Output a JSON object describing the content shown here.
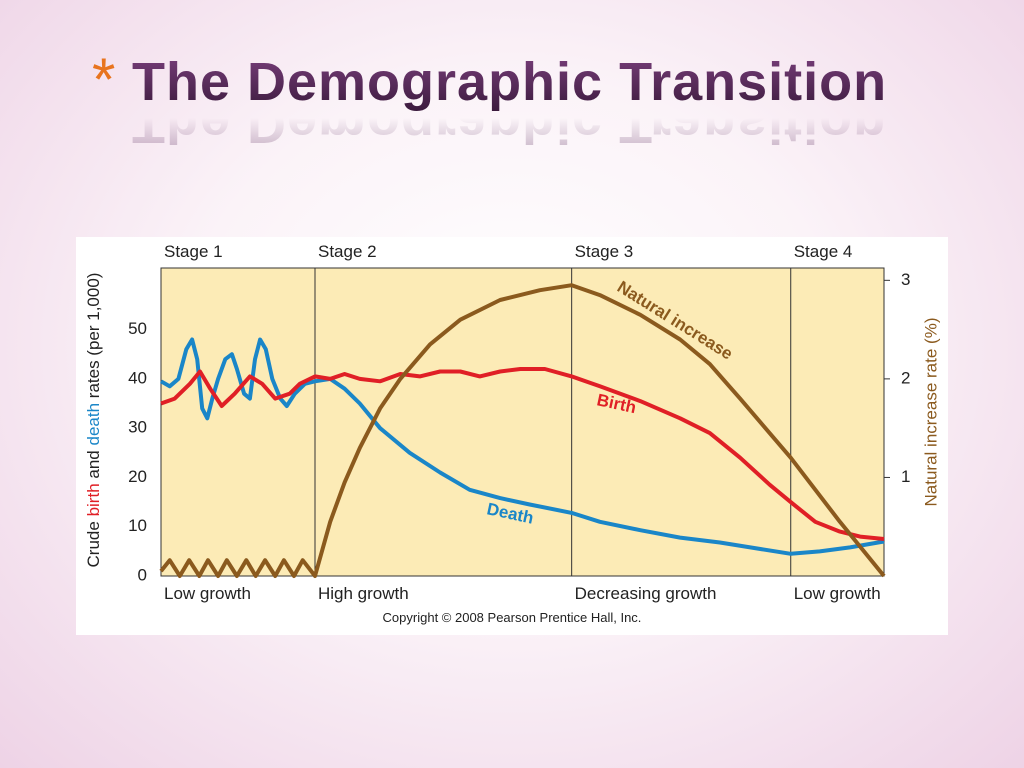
{
  "slide": {
    "bullet": "*",
    "title": "The Demographic Transition"
  },
  "chart_data": {
    "type": "line",
    "ylabel_parts": [
      "Crude",
      "birth",
      "and",
      "death",
      "rates (per 1,000)"
    ],
    "y2label": "Natural increase rate (%)",
    "copyright": "Copyright © 2008 Pearson Prentice Hall, Inc.",
    "xlim": [
      0,
      100
    ],
    "ylim": [
      0,
      62.5
    ],
    "yticks": [
      0,
      10,
      20,
      30,
      40,
      50
    ],
    "y2lim": [
      0,
      3.125
    ],
    "y2ticks": [
      1,
      2,
      3
    ],
    "stages": [
      {
        "name": "Stage 1",
        "growth": "Low growth",
        "start": 0
      },
      {
        "name": "Stage 2",
        "growth": "High growth",
        "start": 21.3
      },
      {
        "name": "Stage 3",
        "growth": "Decreasing growth",
        "start": 56.8
      },
      {
        "name": "Stage 4",
        "growth": "Low growth",
        "start": 87.1
      }
    ],
    "series": [
      {
        "name": "Death",
        "color": "#1a86c8",
        "x": [
          0,
          1.2,
          2.4,
          3.5,
          4.3,
          5,
          5.7,
          6.4,
          7.1,
          7.9,
          8.9,
          9.8,
          10.5,
          11.5,
          12.3,
          13,
          13.7,
          14.5,
          15.4,
          16.5,
          17.4,
          18.5,
          19.9,
          21.3,
          23.4,
          25.4,
          27.5,
          30.3,
          34.4,
          38.6,
          42.7,
          46.9,
          51,
          56.8,
          60.7,
          66.3,
          71.8,
          77.3,
          82.8,
          87.1,
          91.1,
          95.3,
          100
        ],
        "values": [
          39.5,
          38.5,
          40,
          46,
          48,
          44,
          34,
          32,
          36,
          40,
          44,
          45,
          42,
          37,
          36,
          44,
          48,
          46,
          40,
          36,
          34.5,
          37,
          39,
          39.5,
          40,
          38,
          35,
          30,
          25,
          21,
          17.5,
          15.8,
          14.5,
          12.8,
          11,
          9.3,
          7.8,
          6.8,
          5.5,
          4.5,
          5,
          5.8,
          7
        ]
      },
      {
        "name": "Birth",
        "color": "#e01f26",
        "x": [
          0,
          1.9,
          4,
          5.4,
          6.8,
          8.4,
          10.2,
          12.3,
          14,
          15.8,
          17.8,
          19.2,
          21.3,
          23.4,
          25.4,
          27.5,
          30.3,
          33.1,
          35.8,
          38.6,
          41.4,
          44.1,
          46.9,
          49.7,
          53.1,
          56.8,
          60.7,
          66.3,
          71.8,
          75.9,
          80.1,
          84.2,
          87.1,
          90.5,
          93.9,
          96.7,
          100
        ],
        "values": [
          35,
          36,
          39,
          41.5,
          38,
          34.5,
          37,
          40.5,
          39,
          36,
          37,
          39,
          40.5,
          40,
          41,
          40,
          39.5,
          41,
          40.5,
          41.5,
          41.5,
          40.5,
          41.5,
          42,
          42,
          40.5,
          38.5,
          35.5,
          32,
          29,
          24,
          18.5,
          15,
          11,
          9,
          8,
          7.5
        ]
      },
      {
        "name": "Natural increase",
        "color": "#8b5a1e",
        "axis": "y2",
        "x": [
          0,
          1.2,
          2.6,
          3.9,
          5.3,
          6.5,
          7.9,
          9.1,
          10.5,
          11.8,
          13.1,
          14.4,
          15.8,
          17,
          18.4,
          19.6,
          21.3,
          23.4,
          25.4,
          27.5,
          30.3,
          33.1,
          37.2,
          41.4,
          46.9,
          52.4,
          56.8,
          60.7,
          66.3,
          71.8,
          75.9,
          80.1,
          87.1,
          93.9,
          100
        ],
        "values": [
          0.05,
          0.16,
          0,
          0.16,
          0,
          0.16,
          0,
          0.16,
          0,
          0.16,
          0,
          0.16,
          0,
          0.16,
          0,
          0.16,
          0,
          0.55,
          0.95,
          1.3,
          1.7,
          2.0,
          2.35,
          2.6,
          2.8,
          2.9,
          2.95,
          2.85,
          2.65,
          2.4,
          2.15,
          1.8,
          1.2,
          0.55,
          0
        ]
      }
    ]
  }
}
